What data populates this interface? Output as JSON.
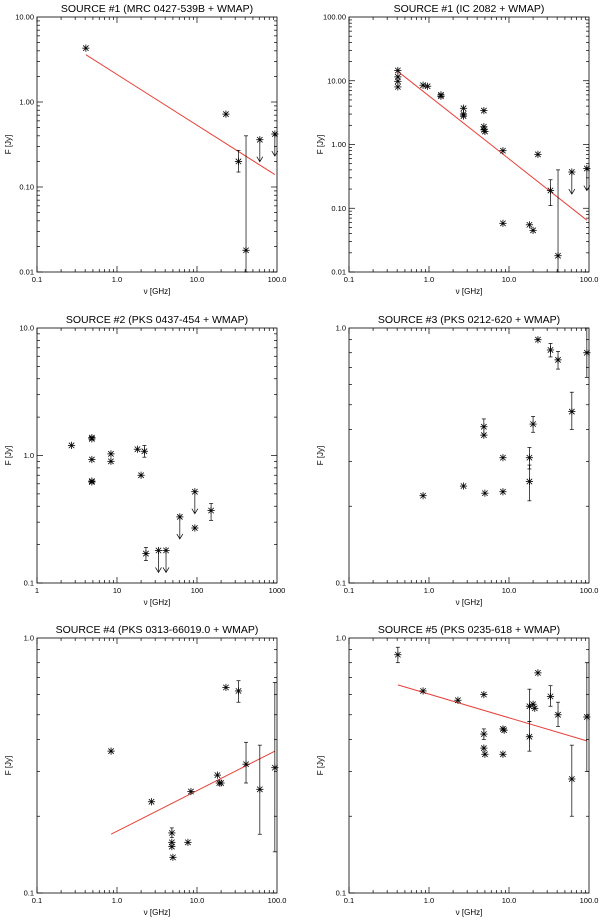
{
  "chart_data": [
    {
      "type": "scatter",
      "title": "SOURCE #1 (MRC 0427-539B + WMAP)",
      "xlabel": "ν [GHz]",
      "ylabel": "F [Jy]",
      "xscale": "log",
      "yscale": "log",
      "xlim": [
        0.1,
        100.0
      ],
      "ylim": [
        0.01,
        10.0
      ],
      "xticks": [
        0.1,
        1.0,
        10.0,
        100.0
      ],
      "xtick_labels": [
        "0.1",
        "1.0",
        "10.0",
        "100.0"
      ],
      "yticks": [
        0.01,
        0.1,
        1.0,
        10.0
      ],
      "ytick_labels": [
        "0.01",
        "0.10",
        "1.00",
        "10.00"
      ],
      "points": [
        {
          "x": 0.408,
          "y": 4.3
        },
        {
          "x": 23,
          "y": 0.72
        },
        {
          "x": 33,
          "y": 0.2,
          "yerr_low": 0.15,
          "yerr_high": 0.27
        },
        {
          "x": 41,
          "y": 0.018,
          "yerr_low": 0.01,
          "yerr_high": 0.4
        },
        {
          "x": 61,
          "y": 0.36,
          "upper_limit": true
        },
        {
          "x": 94,
          "y": 0.42,
          "upper_limit": true
        }
      ],
      "fit": {
        "x": [
          0.408,
          94
        ],
        "y": [
          3.6,
          0.14
        ]
      }
    },
    {
      "type": "scatter",
      "title": "SOURCE #1 (IC 2082 + WMAP)",
      "xlabel": "ν [GHz]",
      "ylabel": "F [Jy]",
      "xscale": "log",
      "yscale": "log",
      "xlim": [
        0.1,
        100.0
      ],
      "ylim": [
        0.01,
        100.0
      ],
      "xticks": [
        0.1,
        1.0,
        10.0,
        100.0
      ],
      "xtick_labels": [
        "0.1",
        "1.0",
        "10.0",
        "100.0"
      ],
      "yticks": [
        0.01,
        0.1,
        1.0,
        10.0,
        100.0
      ],
      "ytick_labels": [
        "0.01",
        "0.10",
        "1.00",
        "10.00",
        "100.00"
      ],
      "points": [
        {
          "x": 0.408,
          "y": 14.5
        },
        {
          "x": 0.408,
          "y": 11.5
        },
        {
          "x": 0.408,
          "y": 9.8
        },
        {
          "x": 0.408,
          "y": 8.0
        },
        {
          "x": 0.843,
          "y": 8.5
        },
        {
          "x": 0.96,
          "y": 8.2
        },
        {
          "x": 1.41,
          "y": 6.0
        },
        {
          "x": 1.41,
          "y": 5.7
        },
        {
          "x": 2.7,
          "y": 3.7
        },
        {
          "x": 2.7,
          "y": 3.0
        },
        {
          "x": 2.7,
          "y": 2.8
        },
        {
          "x": 4.85,
          "y": 3.4
        },
        {
          "x": 4.85,
          "y": 1.9
        },
        {
          "x": 4.85,
          "y": 1.7
        },
        {
          "x": 5.0,
          "y": 1.6
        },
        {
          "x": 8.4,
          "y": 0.8
        },
        {
          "x": 8.4,
          "y": 0.058
        },
        {
          "x": 18,
          "y": 0.055
        },
        {
          "x": 20,
          "y": 0.045
        },
        {
          "x": 23,
          "y": 0.7
        },
        {
          "x": 33,
          "y": 0.19,
          "yerr_low": 0.11,
          "yerr_high": 0.28
        },
        {
          "x": 41,
          "y": 0.018,
          "yerr_low": 0.01,
          "yerr_high": 0.4
        },
        {
          "x": 61,
          "y": 0.37,
          "upper_limit": true
        },
        {
          "x": 94,
          "y": 0.42,
          "upper_limit": true
        }
      ],
      "fit": {
        "x": [
          0.408,
          94
        ],
        "y": [
          14.0,
          0.065
        ]
      }
    },
    {
      "type": "scatter",
      "title": "SOURCE #2 (PKS 0437-454 + WMAP)",
      "xlabel": "ν [GHz]",
      "ylabel": "F [Jy]",
      "xscale": "log",
      "yscale": "log",
      "xlim": [
        1,
        1000
      ],
      "ylim": [
        0.1,
        10.0
      ],
      "xticks": [
        1,
        10,
        100,
        1000
      ],
      "xtick_labels": [
        "1",
        "10",
        "100",
        "1000"
      ],
      "yticks": [
        0.1,
        1.0,
        10.0
      ],
      "ytick_labels": [
        "0.1",
        "1.0",
        "10.0"
      ],
      "points": [
        {
          "x": 2.7,
          "y": 1.2
        },
        {
          "x": 4.85,
          "y": 1.38
        },
        {
          "x": 4.85,
          "y": 1.35
        },
        {
          "x": 4.85,
          "y": 0.93
        },
        {
          "x": 4.85,
          "y": 0.63
        },
        {
          "x": 4.85,
          "y": 0.62
        },
        {
          "x": 8.4,
          "y": 1.03
        },
        {
          "x": 8.4,
          "y": 0.9
        },
        {
          "x": 18,
          "y": 1.12
        },
        {
          "x": 20,
          "y": 0.7
        },
        {
          "x": 22,
          "y": 1.08,
          "yerr_low": 0.97,
          "yerr_high": 1.2
        },
        {
          "x": 23,
          "y": 0.17,
          "yerr_low": 0.15,
          "yerr_high": 0.19
        },
        {
          "x": 33,
          "y": 0.18,
          "upper_limit": true
        },
        {
          "x": 41,
          "y": 0.18,
          "upper_limit": true
        },
        {
          "x": 61,
          "y": 0.33,
          "upper_limit": true
        },
        {
          "x": 94,
          "y": 0.52,
          "upper_limit": true
        },
        {
          "x": 94,
          "y": 0.27
        },
        {
          "x": 150,
          "y": 0.37,
          "yerr_low": 0.31,
          "yerr_high": 0.42
        }
      ]
    },
    {
      "type": "scatter",
      "title": "SOURCE #3 (PKS 0212-620 + WMAP)",
      "xlabel": "ν [GHz]",
      "ylabel": "F [Jy]",
      "xscale": "log",
      "yscale": "log",
      "xlim": [
        0.1,
        100.0
      ],
      "ylim": [
        0.1,
        1.0
      ],
      "xticks": [
        0.1,
        1.0,
        10.0,
        100.0
      ],
      "xtick_labels": [
        "0.1",
        "1.0",
        "10.0",
        "100.0"
      ],
      "yticks": [
        0.1,
        1.0
      ],
      "ytick_labels": [
        "0.1",
        "1.0"
      ],
      "points": [
        {
          "x": 0.843,
          "y": 0.22
        },
        {
          "x": 2.7,
          "y": 0.24
        },
        {
          "x": 4.85,
          "y": 0.41,
          "yerr_low": 0.38,
          "yerr_high": 0.44
        },
        {
          "x": 4.85,
          "y": 0.38
        },
        {
          "x": 5.0,
          "y": 0.225
        },
        {
          "x": 8.4,
          "y": 0.31
        },
        {
          "x": 8.4,
          "y": 0.228
        },
        {
          "x": 18,
          "y": 0.31,
          "yerr_low": 0.28,
          "yerr_high": 0.34
        },
        {
          "x": 18,
          "y": 0.25,
          "yerr_low": 0.21,
          "yerr_high": 0.29
        },
        {
          "x": 20,
          "y": 0.42,
          "yerr_low": 0.39,
          "yerr_high": 0.45
        },
        {
          "x": 23,
          "y": 0.9
        },
        {
          "x": 33,
          "y": 0.82,
          "yerr_low": 0.77,
          "yerr_high": 0.87
        },
        {
          "x": 41,
          "y": 0.75,
          "yerr_low": 0.69,
          "yerr_high": 0.81
        },
        {
          "x": 61,
          "y": 0.47,
          "yerr_low": 0.4,
          "yerr_high": 0.56
        },
        {
          "x": 94,
          "y": 0.8,
          "yerr_low": 0.64,
          "yerr_high": 1.0
        }
      ]
    },
    {
      "type": "scatter",
      "title": "SOURCE #4 (PKS 0313-66019.0 + WMAP)",
      "xlabel": "ν [GHz]",
      "ylabel": "F [Jy]",
      "xscale": "log",
      "yscale": "log",
      "xlim": [
        0.1,
        100.0
      ],
      "ylim": [
        0.1,
        1.0
      ],
      "xticks": [
        0.1,
        1.0,
        10.0,
        100.0
      ],
      "xtick_labels": [
        "0.1",
        "1.0",
        "10.0",
        "100.0"
      ],
      "yticks": [
        0.1,
        1.0
      ],
      "ytick_labels": [
        "0.1",
        "1.0"
      ],
      "points": [
        {
          "x": 0.843,
          "y": 0.36
        },
        {
          "x": 2.7,
          "y": 0.228
        },
        {
          "x": 4.85,
          "y": 0.172,
          "yerr_low": 0.165,
          "yerr_high": 0.18
        },
        {
          "x": 4.85,
          "y": 0.158
        },
        {
          "x": 4.85,
          "y": 0.152
        },
        {
          "x": 5.0,
          "y": 0.138
        },
        {
          "x": 7.7,
          "y": 0.158
        },
        {
          "x": 8.4,
          "y": 0.25
        },
        {
          "x": 18,
          "y": 0.29
        },
        {
          "x": 19,
          "y": 0.27
        },
        {
          "x": 20,
          "y": 0.27
        },
        {
          "x": 23,
          "y": 0.64
        },
        {
          "x": 33,
          "y": 0.62,
          "yerr_low": 0.56,
          "yerr_high": 0.68
        },
        {
          "x": 41,
          "y": 0.32,
          "yerr_low": 0.27,
          "yerr_high": 0.39
        },
        {
          "x": 61,
          "y": 0.255,
          "yerr_low": 0.17,
          "yerr_high": 0.38
        },
        {
          "x": 94,
          "y": 0.31,
          "yerr_low": 0.145,
          "yerr_high": 0.67
        }
      ],
      "fit": {
        "x": [
          0.843,
          94
        ],
        "y": [
          0.17,
          0.36
        ]
      }
    },
    {
      "type": "scatter",
      "title": "SOURCE #5 (PKS 0235-618 + WMAP)",
      "xlabel": "ν [GHz]",
      "ylabel": "F [Jy]",
      "xscale": "log",
      "yscale": "log",
      "xlim": [
        0.1,
        100.0
      ],
      "ylim": [
        0.1,
        1.0
      ],
      "xticks": [
        0.1,
        1.0,
        10.0,
        100.0
      ],
      "xtick_labels": [
        "0.1",
        "1.0",
        "10.0",
        "100.0"
      ],
      "yticks": [
        0.1,
        1.0
      ],
      "ytick_labels": [
        "0.1",
        "1.0"
      ],
      "points": [
        {
          "x": 0.408,
          "y": 0.86,
          "yerr_low": 0.8,
          "yerr_high": 0.92
        },
        {
          "x": 0.843,
          "y": 0.62
        },
        {
          "x": 2.3,
          "y": 0.57
        },
        {
          "x": 4.85,
          "y": 0.6
        },
        {
          "x": 4.85,
          "y": 0.42,
          "yerr_low": 0.4,
          "yerr_high": 0.44
        },
        {
          "x": 4.85,
          "y": 0.37
        },
        {
          "x": 5.0,
          "y": 0.35
        },
        {
          "x": 8.4,
          "y": 0.44
        },
        {
          "x": 8.4,
          "y": 0.35
        },
        {
          "x": 8.7,
          "y": 0.435
        },
        {
          "x": 18,
          "y": 0.54,
          "yerr_low": 0.47,
          "yerr_high": 0.63
        },
        {
          "x": 18,
          "y": 0.41,
          "yerr_low": 0.36,
          "yerr_high": 0.47
        },
        {
          "x": 20,
          "y": 0.55
        },
        {
          "x": 21,
          "y": 0.53
        },
        {
          "x": 23,
          "y": 0.73
        },
        {
          "x": 33,
          "y": 0.59,
          "yerr_low": 0.54,
          "yerr_high": 0.65
        },
        {
          "x": 41,
          "y": 0.5,
          "yerr_low": 0.45,
          "yerr_high": 0.56
        },
        {
          "x": 61,
          "y": 0.28,
          "yerr_low": 0.2,
          "yerr_high": 0.38
        },
        {
          "x": 94,
          "y": 0.49,
          "yerr_low": 0.3,
          "yerr_high": 0.8
        }
      ],
      "fit": {
        "x": [
          0.408,
          94
        ],
        "y": [
          0.655,
          0.395
        ]
      }
    }
  ]
}
